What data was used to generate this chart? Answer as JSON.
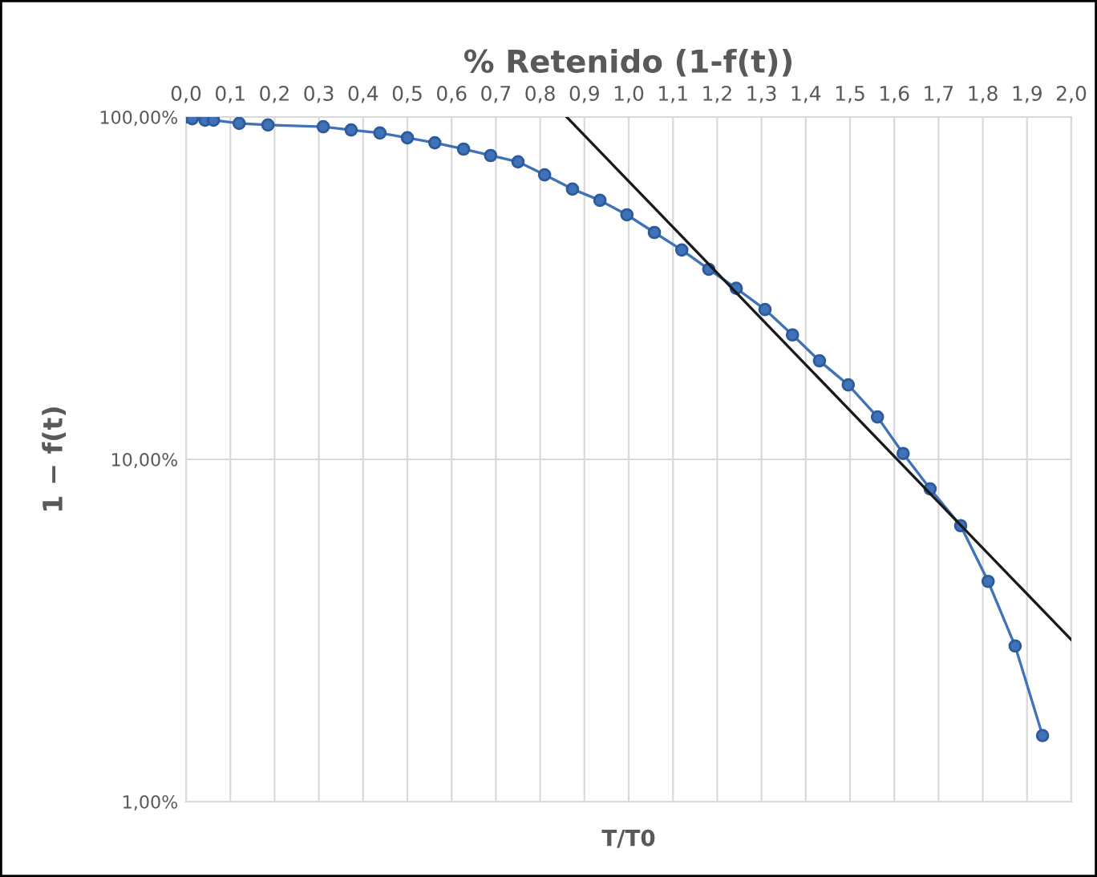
{
  "chart_data": {
    "type": "line",
    "title": "% Retenido (1-f(t))",
    "xlabel": "T/T0",
    "ylabel": "1 − f(t)",
    "log": "y",
    "grid": true,
    "legend": false,
    "xlim": [
      0,
      2.0
    ],
    "ylim": [
      1,
      100
    ],
    "xticks": [
      {
        "value": 0,
        "label": "0,0"
      },
      {
        "value": 0.1,
        "label": "0,1"
      },
      {
        "value": 0.2,
        "label": "0,2"
      },
      {
        "value": 0.3,
        "label": "0,3"
      },
      {
        "value": 0.4,
        "label": "0,4"
      },
      {
        "value": 0.5,
        "label": "0,5"
      },
      {
        "value": 0.6,
        "label": "0,6"
      },
      {
        "value": 0.7,
        "label": "0,7"
      },
      {
        "value": 0.8,
        "label": "0,8"
      },
      {
        "value": 0.9,
        "label": "0,9"
      },
      {
        "value": 1.0,
        "label": "1,0"
      },
      {
        "value": 1.1,
        "label": "1,1"
      },
      {
        "value": 1.2,
        "label": "1,2"
      },
      {
        "value": 1.3,
        "label": "1,3"
      },
      {
        "value": 1.4,
        "label": "1,4"
      },
      {
        "value": 1.5,
        "label": "1,5"
      },
      {
        "value": 1.6,
        "label": "1,6"
      },
      {
        "value": 1.7,
        "label": "1,7"
      },
      {
        "value": 1.8,
        "label": "1,8"
      },
      {
        "value": 1.9,
        "label": "1,9"
      },
      {
        "value": 2.0,
        "label": "2,0"
      }
    ],
    "yticks": [
      {
        "value": 1,
        "label": "1,00%"
      },
      {
        "value": 10,
        "label": "10,00%"
      },
      {
        "value": 100,
        "label": "100,00%"
      }
    ],
    "series": [
      {
        "color": "#3f72b8",
        "marker": "circle",
        "x": [
          0,
          0.014,
          0.043,
          0.062,
          0.12,
          0.185,
          0.31,
          0.373,
          0.438,
          0.5,
          0.562,
          0.627,
          0.688,
          0.75,
          0.81,
          0.873,
          0.935,
          0.996,
          1.058,
          1.12,
          1.181,
          1.243,
          1.308,
          1.37,
          1.431,
          1.496,
          1.562,
          1.62,
          1.681,
          1.75,
          1.812,
          1.873,
          1.935
        ],
        "values": [
          100,
          98.9,
          97.9,
          97.9,
          95.8,
          94.8,
          93.7,
          91.7,
          89.8,
          87,
          84.1,
          80.6,
          77.2,
          74,
          67.8,
          61.6,
          57.1,
          51.8,
          46,
          40.9,
          35.9,
          31.6,
          27.4,
          23.1,
          19.4,
          16.5,
          13.3,
          10.4,
          8.2,
          6.4,
          4.4,
          2.85,
          1.56
        ]
      },
      {
        "color": "#1a1a1a",
        "marker": "none",
        "x": [
          0.86,
          2.0
        ],
        "values": [
          100,
          2.97
        ]
      }
    ]
  }
}
